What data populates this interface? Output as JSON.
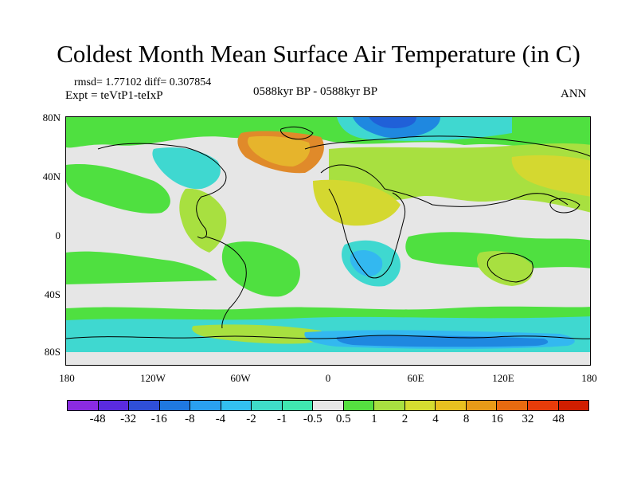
{
  "header": {
    "title": "Coldest Month Mean Surface Air Temperature (in C)",
    "stats": "rmsd= 1.77102 diff= 0.307854",
    "experiment": "Expt = teVtP1-teIxP",
    "period": "0588kyr BP - 0588kyr BP",
    "season": "ANN"
  },
  "axes": {
    "y_ticks": [
      "80N",
      "40N",
      "0",
      "40S",
      "80S"
    ],
    "x_ticks": [
      "180",
      "120W",
      "60W",
      "0",
      "60E",
      "120E",
      "180"
    ]
  },
  "colorbar": {
    "colors": [
      "#8a2be2",
      "#5a2be0",
      "#2f4fd8",
      "#1f78e0",
      "#2aa0f0",
      "#33c0f0",
      "#3fdcc8",
      "#40e8b0",
      "#e6e6e6",
      "#55e040",
      "#a8e040",
      "#d4dc30",
      "#e8c020",
      "#e89a18",
      "#e86a10",
      "#e83c0a",
      "#d01e00"
    ],
    "labels": [
      "-48",
      "-32",
      "-16",
      "-8",
      "-4",
      "-2",
      "-1",
      "-0.5",
      "0.5",
      "1",
      "2",
      "4",
      "8",
      "16",
      "32",
      "48"
    ]
  },
  "map": {
    "background_class": "-0.5..0.5 (no change)",
    "colors": {
      "land_line": "#000000",
      "green": "#4fe040",
      "yellowgreen": "#a8e040",
      "olive": "#d4d830",
      "orange": "#e6b42c",
      "darkorange": "#e08a2a",
      "cyan": "#3fd8d0",
      "lightblue": "#33b8f0",
      "blue": "#1f88e0",
      "darkblue": "#2060d8"
    }
  }
}
